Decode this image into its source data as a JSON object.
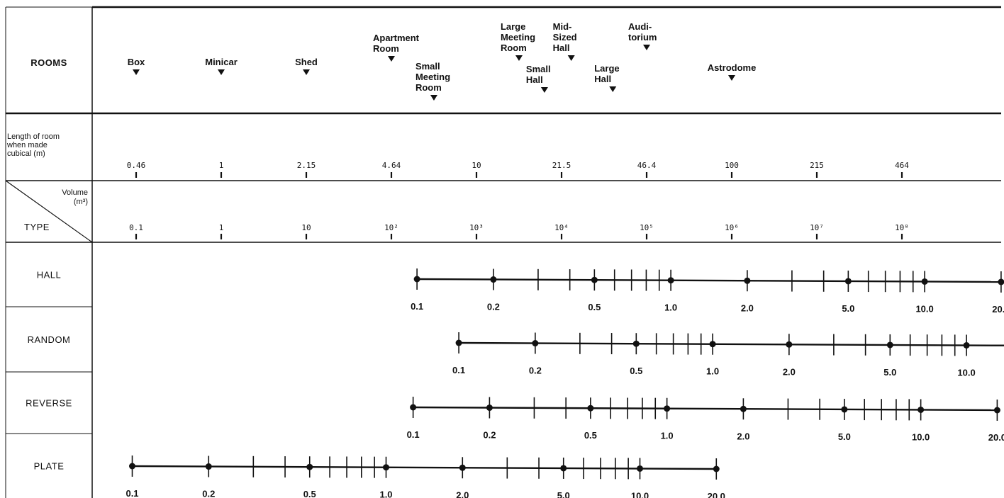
{
  "header_label": "ROOMS",
  "rooms": [
    {
      "lines": [
        "Box"
      ],
      "volume_m3": 0.1
    },
    {
      "lines": [
        "Minicar"
      ],
      "volume_m3": 1
    },
    {
      "lines": [
        "Shed"
      ],
      "volume_m3": 10
    },
    {
      "lines": [
        "Apartment",
        "Room"
      ],
      "volume_m3": 100
    },
    {
      "lines": [
        "Small",
        "Meeting",
        "Room"
      ],
      "volume_m3": 316
    },
    {
      "lines": [
        "Large",
        "Meeting",
        "Room"
      ],
      "volume_m3": 3160
    },
    {
      "lines": [
        "Small",
        "Hall"
      ],
      "volume_m3": 6300
    },
    {
      "lines": [
        "Mid-",
        "Sized",
        "Hall"
      ],
      "volume_m3": 13000
    },
    {
      "lines": [
        "Large",
        "Hall"
      ],
      "volume_m3": 40000
    },
    {
      "lines": [
        "Audi-",
        "torium"
      ],
      "volume_m3": 100000
    },
    {
      "lines": [
        "Astrodome"
      ],
      "volume_m3": 1000000
    }
  ],
  "length_row": {
    "label_lines": [
      "Length of room",
      "when made",
      "cubical (m)"
    ],
    "values": [
      "0.46",
      "1",
      "2.15",
      "4.64",
      "10",
      "21.5",
      "46.4",
      "100",
      "215",
      "464"
    ]
  },
  "volume_row": {
    "diag_label_lines": [
      "Volume",
      "(m³)"
    ],
    "type_label": "TYPE",
    "values": [
      "0.1",
      "1",
      "10",
      "10²",
      "10³",
      "10⁴",
      "10⁵",
      "10⁶",
      "10⁷",
      "10⁸"
    ]
  },
  "scale_labels": [
    "0.1",
    "0.2",
    "0.5",
    "1.0",
    "2.0",
    "5.0",
    "10.0",
    "20.0"
  ],
  "chart_data": {
    "type": "diagram",
    "room_types": [
      {
        "name": "HALL",
        "min_volume_m3": 200
      },
      {
        "name": "RANDOM",
        "min_volume_m3": 620
      },
      {
        "name": "REVERSE",
        "min_volume_m3": 180
      },
      {
        "name": "PLATE",
        "min_volume_m3": 0.09
      }
    ],
    "scale_points": [
      0.1,
      0.2,
      0.3,
      0.4,
      0.5,
      0.6,
      0.7,
      0.8,
      0.9,
      1.0,
      2.0,
      3.0,
      4.0,
      5.0,
      6.0,
      7.0,
      8.0,
      9.0,
      10.0,
      20.0
    ],
    "dot_points": [
      0.1,
      0.2,
      0.5,
      1.0,
      2.0,
      5.0,
      10.0,
      20.0
    ]
  }
}
